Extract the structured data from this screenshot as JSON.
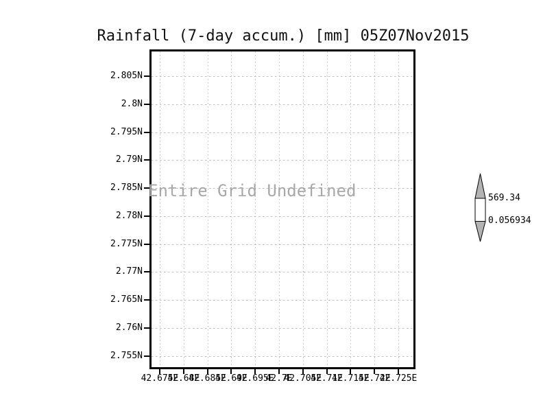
{
  "title": "Rainfall (7-day accum.) [mm] 05Z07Nov2015",
  "plot": {
    "undefined_message": "Entire Grid Undefined",
    "y_axis": {
      "tick_labels": [
        "2.805N",
        "2.8N",
        "2.795N",
        "2.79N",
        "2.785N",
        "2.78N",
        "2.775N",
        "2.77N",
        "2.765N",
        "2.76N",
        "2.755N"
      ]
    },
    "x_axis": {
      "tick_labels": [
        "42.675E",
        "42.68E",
        "42.685E",
        "42.69E",
        "42.695E",
        "42.7E",
        "42.705E",
        "42.71E",
        "42.715E",
        "42.72E",
        "42.725E"
      ]
    }
  },
  "colorbar": {
    "max_label": "569.34",
    "min_label": "0.056934",
    "fill_color": "#b3b3b3",
    "box_color": "#ffffff",
    "outline_color": "#000000"
  },
  "colors": {
    "grid": "#bdbdbd",
    "undefined_text": "#a8a8a8",
    "frame": "#000000",
    "background": "#ffffff"
  },
  "chart_data": {
    "type": "heatmap",
    "title": "Rainfall (7-day accum.) [mm] 05Z07Nov2015",
    "variable": "Rainfall (7-day accum.)",
    "units": "mm",
    "valid_time": "05Z07Nov2015",
    "x_tick_labels": [
      "42.675E",
      "42.68E",
      "42.685E",
      "42.69E",
      "42.695E",
      "42.7E",
      "42.705E",
      "42.71E",
      "42.715E",
      "42.72E",
      "42.725E"
    ],
    "y_tick_labels": [
      "2.805N",
      "2.8N",
      "2.795N",
      "2.79N",
      "2.785N",
      "2.78N",
      "2.775N",
      "2.77N",
      "2.765N",
      "2.76N",
      "2.755N"
    ],
    "x_ticks_deg_east": [
      42.675,
      42.68,
      42.685,
      42.69,
      42.695,
      42.7,
      42.705,
      42.71,
      42.715,
      42.72,
      42.725
    ],
    "y_ticks_deg_north": [
      2.805,
      2.8,
      2.795,
      2.79,
      2.785,
      2.78,
      2.775,
      2.77,
      2.765,
      2.76,
      2.755
    ],
    "values": [],
    "status": "Entire Grid Undefined",
    "colorbar_range": [
      0.056934,
      569.34
    ],
    "grid": true,
    "legend_position": "right"
  }
}
